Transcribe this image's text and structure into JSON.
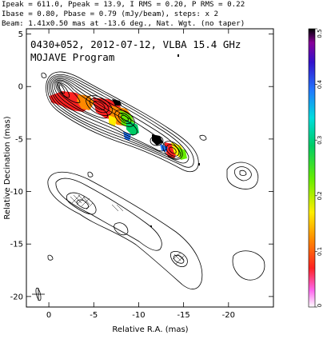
{
  "header": {
    "line1": "Ipeak = 611.0, Ppeak = 13.9, I RMS = 0.20, P RMS = 0.22",
    "line2": "Ibase = 0.80, Pbase = 0.79 (mJy/beam), steps: x 2",
    "line3": "Beam: 1.41x0.50 mas at -13.6 deg., Nat. Wgt. (no taper)"
  },
  "plot_title": {
    "line1": "0430+052, 2012-07-12, VLBA 15.4 GHz",
    "line2": "MOJAVE Program"
  },
  "colors": {
    "frame": "#000000",
    "contour": "#000000",
    "background": "#ffffff"
  },
  "chart_data": {
    "type": "heatmap",
    "title": "0430+052, 2012-07-12, VLBA 15.4 GHz",
    "subtitle": "MOJAVE Program",
    "xlabel": "Relative R.A. (mas)",
    "ylabel": "Relative Decination (mas)",
    "xlim": [
      2.5,
      -25
    ],
    "ylim": [
      -21,
      5.5
    ],
    "x_ticks": [
      0,
      -5,
      -10,
      -15,
      -20
    ],
    "x_tick_labels": [
      "0",
      "-5",
      "-10",
      "-15",
      "-20"
    ],
    "y_ticks": [
      5,
      0,
      -5,
      -10,
      -15,
      -20
    ],
    "y_tick_labels": [
      "5",
      "0",
      "-5",
      "-10",
      "-15",
      "-20"
    ],
    "colorbar": {
      "range": [
        0,
        0.5
      ],
      "ticks": [
        0,
        0.1,
        0.2,
        0.3,
        0.4,
        0.5
      ],
      "tick_labels": [
        "0",
        "0.1",
        "0.2",
        "0.3",
        "0.4",
        "0.5"
      ],
      "colormap": [
        "#ffffff",
        "#ff55ee",
        "#ff2222",
        "#ff8800",
        "#ffee00",
        "#66ee00",
        "#00cc66",
        "#00dddd",
        "#2277ff",
        "#3311cc",
        "#880099",
        "#000000"
      ]
    },
    "beam": {
      "major_mas": 1.41,
      "minor_mas": 0.5,
      "pa_deg": -13.6
    },
    "contour_base_mJy_per_beam": 0.8,
    "contour_step_factor": 2,
    "total_intensity_peak_mJy_per_beam": 611.0,
    "polarized_peak_mJy_per_beam": 13.9
  }
}
